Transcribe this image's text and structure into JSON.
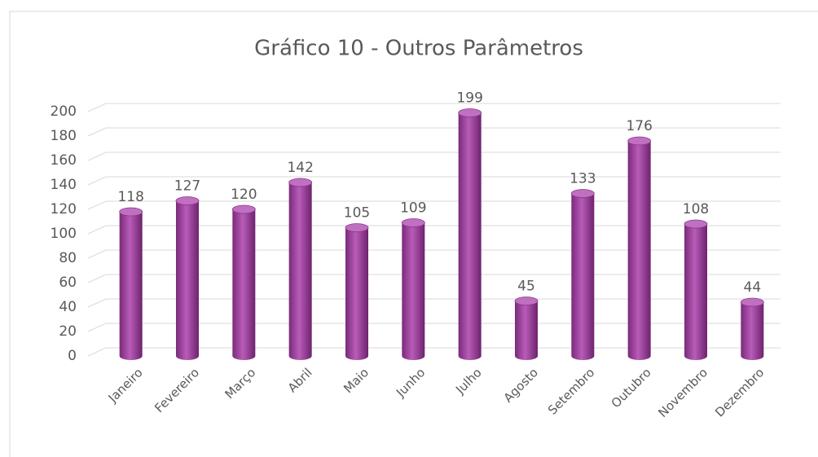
{
  "chart_data": {
    "type": "bar",
    "title": "Gráfico 10 - Outros Parâmetros",
    "categories": [
      "Janeiro",
      "Fevereiro",
      "Março",
      "Abril",
      "Maio",
      "Junho",
      "Julho",
      "Agosto",
      "Setembro",
      "Outubro",
      "Novembro",
      "Dezembro"
    ],
    "values": [
      118,
      127,
      120,
      142,
      105,
      109,
      199,
      45,
      133,
      176,
      108,
      44
    ],
    "color": "#a040a0",
    "ylim": [
      0,
      200
    ],
    "yticks": [
      0,
      20,
      40,
      60,
      80,
      100,
      120,
      140,
      160,
      180,
      200
    ],
    "grid": true
  }
}
